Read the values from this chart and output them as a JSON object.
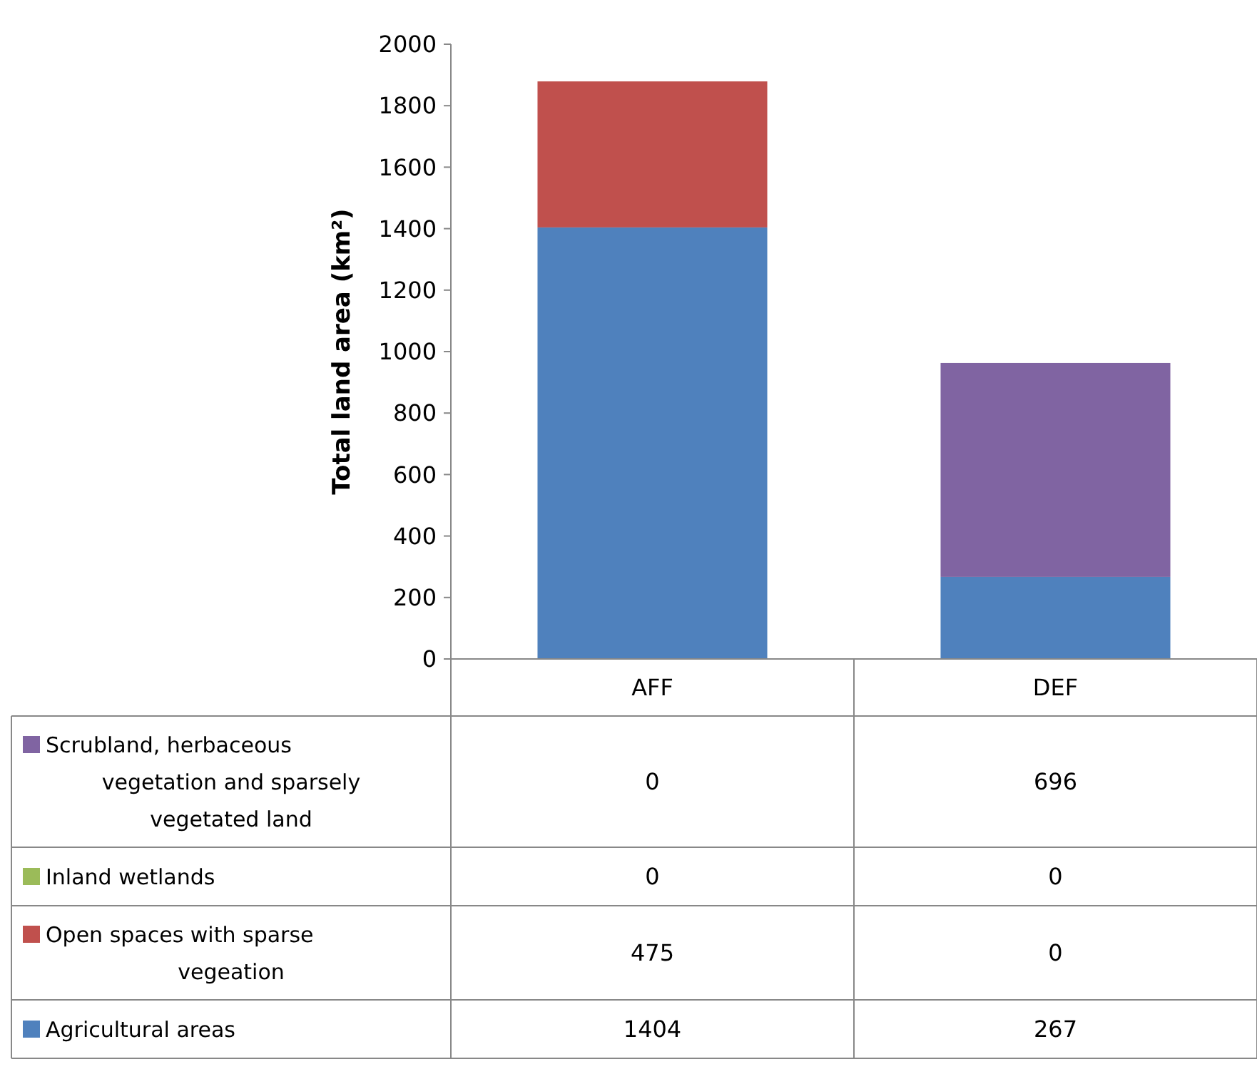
{
  "chart_data": {
    "type": "bar",
    "ylabel": "Total land area (km²)",
    "categories": [
      "AFF",
      "DEF"
    ],
    "stacked": true,
    "ylim": [
      0,
      2000
    ],
    "yticks": [
      0,
      200,
      400,
      600,
      800,
      1000,
      1200,
      1400,
      1600,
      1800,
      2000
    ],
    "grid": false,
    "legend": "left",
    "data_labels": true,
    "series": [
      {
        "name": "Agricultural areas",
        "color": "#4f81bd",
        "values": [
          1404,
          267
        ]
      },
      {
        "name": "Open spaces with sparse vegeation",
        "color": "#c0504d",
        "values": [
          475,
          0
        ]
      },
      {
        "name": "Inland wetlands",
        "color": "#9bbb59",
        "values": [
          0,
          0
        ]
      },
      {
        "name": "Scrubland, herbaceous vegetation and sparsely vegetated land",
        "color": "#8064a2",
        "values": [
          0,
          696
        ]
      }
    ]
  }
}
